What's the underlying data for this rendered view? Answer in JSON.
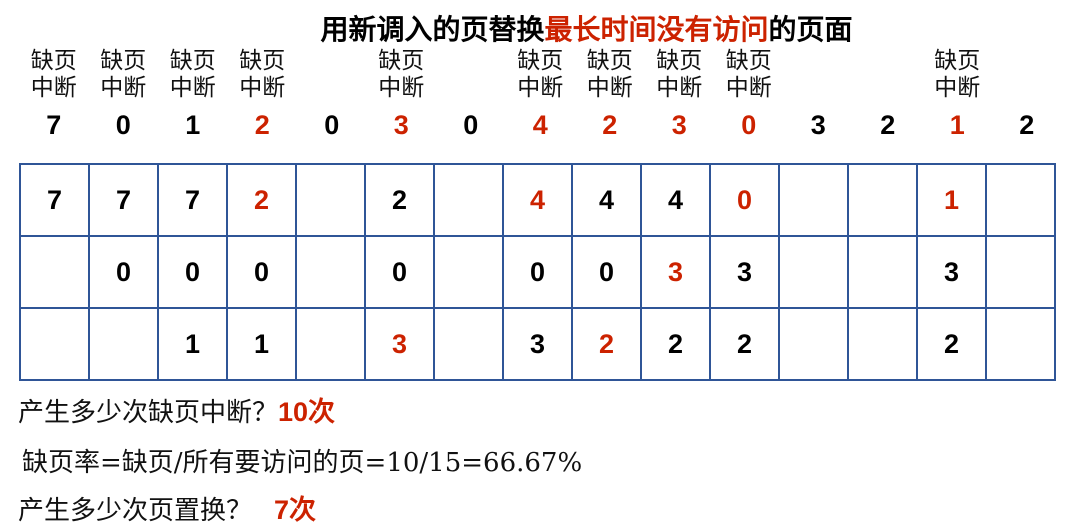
{
  "title": {
    "prefix": "用新调入的页替换",
    "highlight": "最长时间没有访问",
    "suffix": "的页面"
  },
  "fault_label_line1": "缺页",
  "fault_label_line2": "中断",
  "references": [
    "7",
    "0",
    "1",
    "2",
    "0",
    "3",
    "0",
    "4",
    "2",
    "3",
    "0",
    "3",
    "2",
    "1",
    "2"
  ],
  "reference_red": [
    false,
    false,
    false,
    true,
    false,
    true,
    false,
    true,
    true,
    true,
    true,
    false,
    false,
    true,
    false
  ],
  "faults": [
    true,
    true,
    true,
    true,
    false,
    true,
    false,
    true,
    true,
    true,
    true,
    false,
    false,
    true,
    false
  ],
  "frames": [
    [
      "7",
      "7",
      "7",
      "2",
      "",
      "2",
      "",
      "4",
      "4",
      "4",
      "0",
      "",
      "",
      "1",
      ""
    ],
    [
      "",
      "0",
      "0",
      "0",
      "",
      "0",
      "",
      "0",
      "0",
      "3",
      "3",
      "",
      "",
      "3",
      ""
    ],
    [
      "",
      "",
      "1",
      "1",
      "",
      "3",
      "",
      "3",
      "2",
      "2",
      "2",
      "",
      "",
      "2",
      ""
    ]
  ],
  "frames_red": [
    [
      false,
      false,
      false,
      true,
      false,
      false,
      false,
      true,
      false,
      false,
      true,
      false,
      false,
      true,
      false
    ],
    [
      false,
      false,
      false,
      false,
      false,
      false,
      false,
      false,
      false,
      true,
      false,
      false,
      false,
      false,
      false
    ],
    [
      false,
      false,
      false,
      false,
      false,
      true,
      false,
      false,
      true,
      false,
      false,
      false,
      false,
      false,
      false
    ]
  ],
  "questions": {
    "q1": "产生多少次缺页中断？",
    "a1": "10次",
    "q2": "缺页率=缺页/所有要访问的页=10/15=66.67%",
    "q3": "产生多少次页置换？",
    "a3": "7次"
  },
  "colors": {
    "accent": "#cc2200",
    "grid": "#2f5597"
  }
}
